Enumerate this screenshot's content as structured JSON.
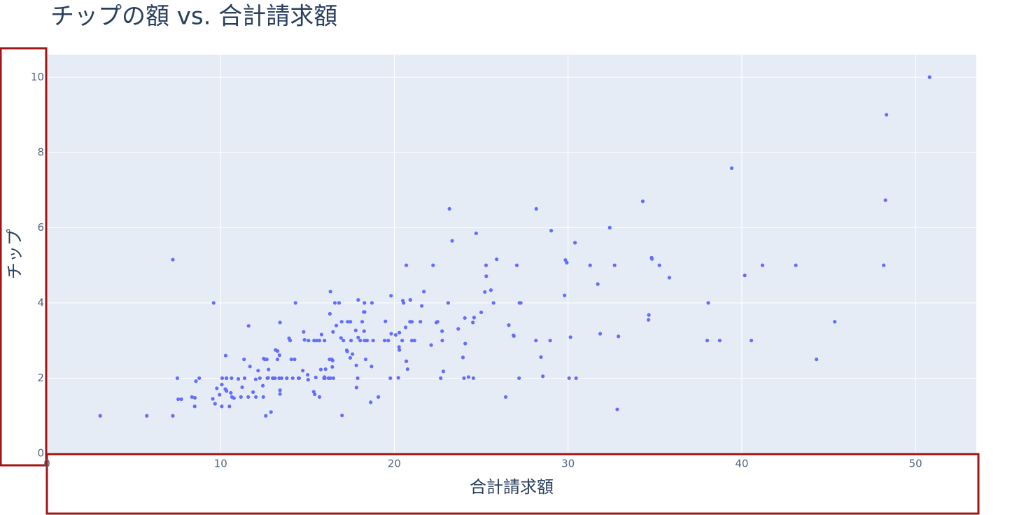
{
  "chart_data": {
    "type": "scatter",
    "title": "チップの額 vs. 合計請求額",
    "x_label": "合計請求額",
    "y_label": "チップ",
    "xlim": [
      0,
      53.5
    ],
    "ylim": [
      0,
      10.6
    ],
    "xticks": [
      0,
      10,
      20,
      30,
      40,
      50
    ],
    "yticks": [
      0,
      2,
      4,
      6,
      8,
      10
    ],
    "grid": true,
    "series": [
      {
        "color": "#636efa",
        "x": [
          16.99,
          10.34,
          21.01,
          23.68,
          24.59,
          25.29,
          8.77,
          26.88,
          15.04,
          14.78,
          10.27,
          35.26,
          15.42,
          18.43,
          14.83,
          21.58,
          10.33,
          16.29,
          16.97,
          20.65,
          17.92,
          20.29,
          15.77,
          39.42,
          19.82,
          17.81,
          13.37,
          12.69,
          21.7,
          19.65,
          9.55,
          18.35,
          15.06,
          20.69,
          17.78,
          24.06,
          16.31,
          16.93,
          18.69,
          31.27,
          16.04,
          17.46,
          13.94,
          9.68,
          30.4,
          18.29,
          22.23,
          32.4,
          28.55,
          18.04,
          12.54,
          10.29,
          34.81,
          9.94,
          25.56,
          19.49,
          38.01,
          26.41,
          11.24,
          48.27,
          20.29,
          13.81,
          11.02,
          18.29,
          17.59,
          20.08,
          16.45,
          3.07,
          20.23,
          15.01,
          12.02,
          17.07,
          26.86,
          25.28,
          14.73,
          10.51,
          17.92,
          27.2,
          22.76,
          17.29,
          19.44,
          16.66,
          10.07,
          32.68,
          15.98,
          34.83,
          13.03,
          18.28,
          24.71,
          21.16,
          28.97,
          22.49,
          5.75,
          16.32,
          22.75,
          40.17,
          27.28,
          12.03,
          21.01,
          12.46,
          11.35,
          15.38,
          44.3,
          22.42,
          20.92,
          15.36,
          20.49,
          25.21,
          18.24,
          14.31,
          14.0,
          7.25,
          38.07,
          23.95,
          25.71,
          17.31,
          29.93,
          10.65,
          12.43,
          24.08,
          11.69,
          13.42,
          14.26,
          15.95,
          12.48,
          29.8,
          8.52,
          14.52,
          11.38,
          22.82,
          19.08,
          20.27,
          11.17,
          12.26,
          18.26,
          8.51,
          10.33,
          14.15,
          16.0,
          13.16,
          17.47,
          34.3,
          41.19,
          27.05,
          16.43,
          8.35,
          18.64,
          11.87,
          9.78,
          7.51,
          14.07,
          13.13,
          17.26,
          24.55,
          19.77,
          29.85,
          48.17,
          25.0,
          13.39,
          16.49,
          21.5,
          12.66,
          16.21,
          13.81,
          17.51,
          24.52,
          20.76,
          31.71,
          10.59,
          10.63,
          50.81,
          15.81,
          7.25,
          31.85,
          16.82,
          32.9,
          17.89,
          14.48,
          9.6,
          34.63,
          34.65,
          23.33,
          45.35,
          23.17,
          40.55,
          20.69,
          20.9,
          30.46,
          18.15,
          23.1,
          15.69,
          19.81,
          28.44,
          15.48,
          16.58,
          7.56,
          10.34,
          43.11,
          13.0,
          13.51,
          18.71,
          12.74,
          13.0,
          16.4,
          20.53,
          16.47,
          26.59,
          38.73,
          24.27,
          12.76,
          30.06,
          25.89,
          48.33,
          13.27,
          28.17,
          12.9,
          28.15,
          11.59,
          7.74,
          30.14,
          12.16,
          13.42,
          8.58,
          15.98,
          13.42,
          16.27,
          10.09,
          20.45,
          13.28,
          22.12,
          24.01,
          15.69,
          11.61,
          10.77,
          15.53,
          10.07,
          12.6,
          32.83,
          35.83,
          29.03,
          27.18,
          22.67,
          17.82,
          18.78
        ],
        "values": [
          1.01,
          1.66,
          3.5,
          3.31,
          3.61,
          4.71,
          2.0,
          3.12,
          1.96,
          3.23,
          1.71,
          5.0,
          1.57,
          3.0,
          3.02,
          3.92,
          1.67,
          3.71,
          3.5,
          3.35,
          4.08,
          2.75,
          2.23,
          7.58,
          3.18,
          2.34,
          2.0,
          2.0,
          4.3,
          3.0,
          1.45,
          2.5,
          3.0,
          2.45,
          3.27,
          3.6,
          2.0,
          3.07,
          2.31,
          5.0,
          2.24,
          2.54,
          3.06,
          1.32,
          5.6,
          3.0,
          5.0,
          6.0,
          2.05,
          3.0,
          2.5,
          2.6,
          5.2,
          1.56,
          4.34,
          3.51,
          3.0,
          1.5,
          1.76,
          6.73,
          3.21,
          2.0,
          1.98,
          3.76,
          2.64,
          3.15,
          2.47,
          1.0,
          2.01,
          2.09,
          1.97,
          3.0,
          3.14,
          5.0,
          2.2,
          1.25,
          3.08,
          4.0,
          3.0,
          2.71,
          3.0,
          3.4,
          1.83,
          5.0,
          2.03,
          5.17,
          2.0,
          4.0,
          5.85,
          3.0,
          3.0,
          3.5,
          1.0,
          4.3,
          3.25,
          4.73,
          4.0,
          1.5,
          3.0,
          1.5,
          2.5,
          3.0,
          2.5,
          3.48,
          4.08,
          1.64,
          4.06,
          4.29,
          3.76,
          4.0,
          3.0,
          1.0,
          4.0,
          2.55,
          4.0,
          3.5,
          5.07,
          1.5,
          1.8,
          2.92,
          2.31,
          1.68,
          2.5,
          2.0,
          2.52,
          4.2,
          1.48,
          2.0,
          2.0,
          2.18,
          1.5,
          2.83,
          1.5,
          2.0,
          3.25,
          1.25,
          2.0,
          2.0,
          2.0,
          2.75,
          3.5,
          6.7,
          5.0,
          5.0,
          2.3,
          1.5,
          1.36,
          1.63,
          1.73,
          2.0,
          2.5,
          2.0,
          2.74,
          2.0,
          2.0,
          5.14,
          5.0,
          3.75,
          2.61,
          2.0,
          3.5,
          2.5,
          2.0,
          2.0,
          3.0,
          3.48,
          2.24,
          4.5,
          1.61,
          2.0,
          10.0,
          3.16,
          5.15,
          3.18,
          4.0,
          3.11,
          2.0,
          2.0,
          4.0,
          3.55,
          3.68,
          5.65,
          3.5,
          6.5,
          3.0,
          5.0,
          3.5,
          2.0,
          3.5,
          4.0,
          1.5,
          4.19,
          2.56,
          2.02,
          4.0,
          1.44,
          2.0,
          5.0,
          2.0,
          2.0,
          4.0,
          2.01,
          2.0,
          2.5,
          4.0,
          3.23,
          3.41,
          3.0,
          2.03,
          2.23,
          2.0,
          5.16,
          9.0,
          2.5,
          6.5,
          1.1,
          3.0,
          1.5,
          1.44,
          3.09,
          2.2,
          3.48,
          1.92,
          3.0,
          1.58,
          2.5,
          2.0,
          3.0,
          2.72,
          2.88,
          2.0,
          3.0,
          3.39,
          1.47,
          3.0,
          1.25,
          1.0,
          1.17,
          4.67,
          5.92,
          2.0,
          2.0,
          1.75,
          3.0
        ]
      }
    ]
  }
}
